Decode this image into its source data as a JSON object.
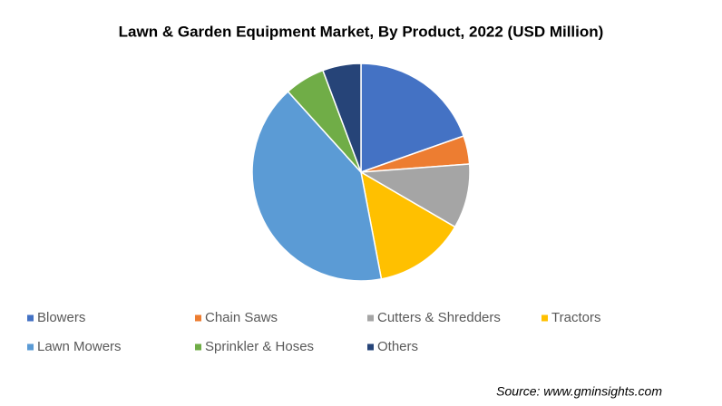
{
  "chart_data": {
    "type": "pie",
    "title": "Lawn & Garden Equipment Market, By Product, 2022 (USD Million)",
    "categories": [
      "Blowers",
      "Chain Saws",
      "Cutters & Shredders",
      "Tractors",
      "Lawn Mowers",
      "Sprinkler & Hoses",
      "Others"
    ],
    "values": [
      19.6,
      4.2,
      9.6,
      13.6,
      41.3,
      6,
      5.7
    ],
    "colors": [
      "#4472c4",
      "#ed7d31",
      "#a5a5a5",
      "#ffc000",
      "#5b9bd5",
      "#70ad47",
      "#264478"
    ],
    "source": "Source: www.gminsights.com"
  }
}
